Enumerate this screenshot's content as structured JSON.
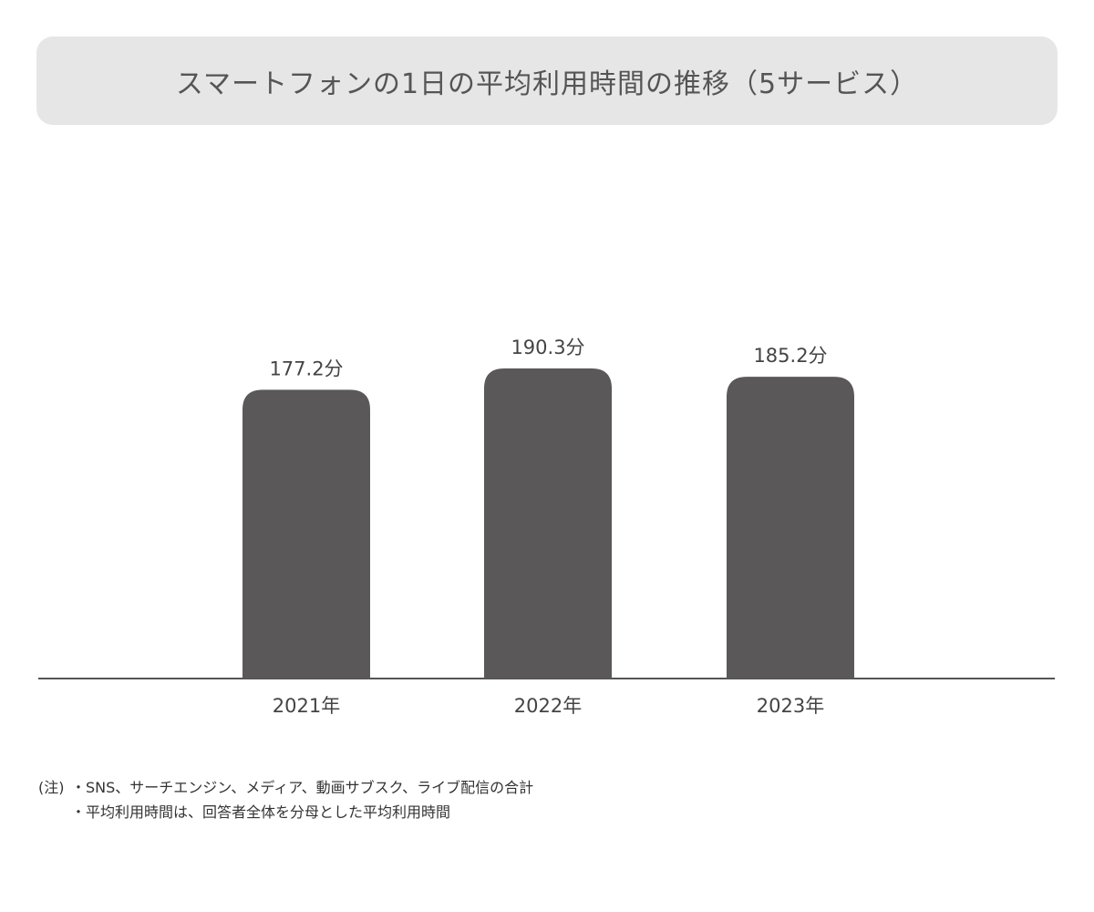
{
  "title": "スマートフォンの1日の平均利用時間の推移（5サービス）",
  "colors": {
    "bar": "#5a5858",
    "axis": "#555555",
    "title_bg": "#e6e6e6"
  },
  "chart_data": {
    "type": "bar",
    "title": "スマートフォンの1日の平均利用時間の推移（5サービス）",
    "categories": [
      "2021年",
      "2022年",
      "2023年"
    ],
    "values": [
      177.2,
      190.3,
      185.2
    ],
    "value_labels": [
      "177.2分",
      "190.3分",
      "185.2分"
    ],
    "unit": "分",
    "xlabel": "",
    "ylabel": "",
    "ylim": [
      0,
      190.3
    ],
    "grid": false,
    "legend": "none"
  },
  "notes": {
    "prefix": "(注)",
    "lines": [
      "・SNS、サーチエンジン、メディア、動画サブスク、ライブ配信の合計",
      "・平均利用時間は、回答者全体を分母とした平均利用時間"
    ]
  }
}
